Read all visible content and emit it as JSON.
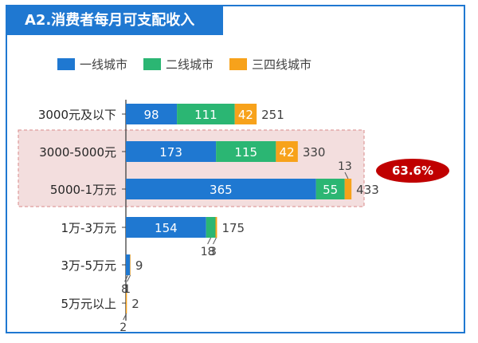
{
  "title": "A2.消费者每月可支配收入",
  "callout": "63.6%",
  "colors": {
    "frame": "#1f78d1",
    "highlight": "#f3dede",
    "callout": "#c00000"
  },
  "chart_data": {
    "type": "bar",
    "orientation": "horizontal",
    "stacked": true,
    "categories": [
      "3000元及以下",
      "3000-5000元",
      "5000-1万元",
      "1万-3万元",
      "3万-5万元",
      "5万元以上"
    ],
    "series": [
      {
        "name": "一线城市",
        "color": "#1f78d1",
        "values": [
          98,
          173,
          365,
          154,
          8,
          0
        ]
      },
      {
        "name": "二线城市",
        "color": "#2bb673",
        "values": [
          111,
          115,
          55,
          18,
          0,
          0
        ]
      },
      {
        "name": "三四线城市",
        "color": "#f7a21b",
        "values": [
          42,
          42,
          13,
          3,
          1,
          2
        ]
      }
    ],
    "totals": [
      251,
      330,
      433,
      175,
      9,
      2
    ],
    "legend_position": "top",
    "grid": false
  }
}
